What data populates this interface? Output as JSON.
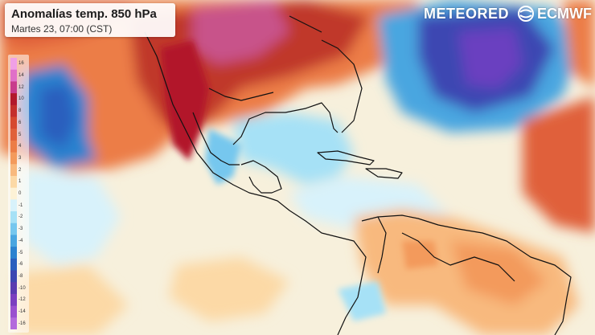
{
  "title": "Anomalías temp. 850 hPa",
  "subtitle": "Martes 23, 07:00 (CST)",
  "brand": {
    "meteored": "METEORED",
    "ecmwf": "ECMWF"
  },
  "legend": {
    "labels": [
      "16",
      "14",
      "12",
      "10",
      "8",
      "6",
      "5",
      "4",
      "3",
      "2",
      "1",
      "0",
      "-1",
      "-2",
      "-3",
      "-4",
      "-5",
      "-6",
      "-8",
      "-10",
      "-12",
      "-14",
      "-16"
    ],
    "colors": [
      "#f0a0e6",
      "#e070c8",
      "#c83c8c",
      "#b2182b",
      "#c42f2b",
      "#d6492e",
      "#e0603a",
      "#ec7d46",
      "#f39a5c",
      "#f8b97e",
      "#fcd9a6",
      "#fdf2d6",
      "#d8f2fb",
      "#a6e1f6",
      "#76c7ee",
      "#4aa6e0",
      "#2c82cf",
      "#2a5fbe",
      "#3d47b2",
      "#5a3cb0",
      "#7b3fbf",
      "#9a50cf",
      "#b36adc"
    ]
  },
  "palette": {
    "warm_strong": "#c0392b",
    "warm": "#ec7d46",
    "neutral": "#fdf2d6",
    "cool": "#76c7ee",
    "cold": "#2c5fc4",
    "very_cold": "#6a3fc0",
    "coast": "#111111"
  }
}
